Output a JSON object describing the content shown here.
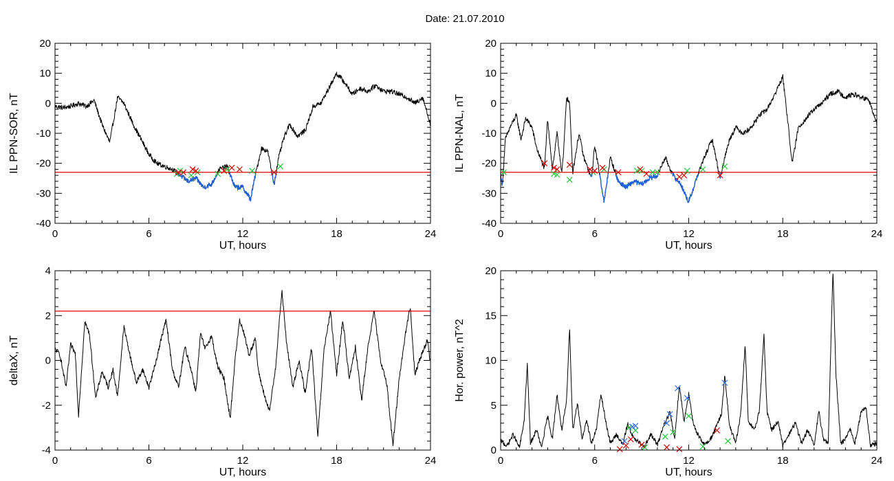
{
  "page_title": "Date:  21.07.2010",
  "colors": {
    "axis": "#000000",
    "trace": "#000000",
    "below": "#1f5fd6",
    "threshold": "#e00000",
    "marker_red": "#e00000",
    "marker_green": "#22c83a",
    "marker_blue": "#2f6fe8"
  },
  "chart_data": [
    {
      "id": "sor",
      "type": "line",
      "xlabel": "UT, hours",
      "ylabel": "IL PPN-SOR, nT",
      "xlim": [
        0,
        24
      ],
      "ylim": [
        -40,
        20
      ],
      "xticks": [
        0,
        6,
        12,
        18,
        24
      ],
      "yticks": [
        -40,
        -30,
        -20,
        -10,
        0,
        10,
        20
      ],
      "threshold": -23,
      "anchors": [
        [
          0,
          -1
        ],
        [
          0.5,
          -1.5
        ],
        [
          1,
          -1
        ],
        [
          1.5,
          0
        ],
        [
          2,
          -1
        ],
        [
          2.5,
          1
        ],
        [
          3,
          -7
        ],
        [
          3.5,
          -13
        ],
        [
          4,
          2
        ],
        [
          4.4,
          0
        ],
        [
          5,
          -7
        ],
        [
          5.5,
          -12
        ],
        [
          6,
          -17
        ],
        [
          6.5,
          -20
        ],
        [
          7,
          -21
        ],
        [
          7.5,
          -22
        ],
        [
          8,
          -24
        ],
        [
          8.5,
          -26
        ],
        [
          9,
          -25
        ],
        [
          9.5,
          -28
        ],
        [
          10,
          -27
        ],
        [
          10.5,
          -22
        ],
        [
          11,
          -21
        ],
        [
          11.5,
          -28
        ],
        [
          12,
          -28
        ],
        [
          12.5,
          -32
        ],
        [
          12.8,
          -24
        ],
        [
          13.2,
          -15
        ],
        [
          13.6,
          -16
        ],
        [
          14,
          -27
        ],
        [
          14.3,
          -18
        ],
        [
          14.6,
          -12
        ],
        [
          15,
          -7
        ],
        [
          15.5,
          -11
        ],
        [
          16,
          -9
        ],
        [
          16.5,
          -1
        ],
        [
          17,
          0
        ],
        [
          17.5,
          5
        ],
        [
          18,
          10
        ],
        [
          18.5,
          7
        ],
        [
          19,
          3
        ],
        [
          19.5,
          5
        ],
        [
          20,
          4
        ],
        [
          20.5,
          6
        ],
        [
          21,
          4
        ],
        [
          21.5,
          4
        ],
        [
          22,
          3
        ],
        [
          22.5,
          2
        ],
        [
          23,
          0
        ],
        [
          23.5,
          2
        ],
        [
          24,
          -7
        ]
      ],
      "markers_red": [
        [
          7.9,
          -23
        ],
        [
          8.2,
          -23
        ],
        [
          8.8,
          -22
        ],
        [
          9.0,
          -22.5
        ],
        [
          10.8,
          -22.5
        ],
        [
          11.3,
          -21.5
        ],
        [
          11.8,
          -22
        ],
        [
          14.0,
          -23
        ]
      ],
      "markers_green": [
        [
          7.8,
          -23.5
        ],
        [
          8.0,
          -22.5
        ],
        [
          8.7,
          -24
        ],
        [
          9.1,
          -23
        ],
        [
          10.4,
          -23.5
        ],
        [
          11.0,
          -22
        ],
        [
          12.6,
          -22.5
        ],
        [
          14.4,
          -21
        ]
      ],
      "markers_blue": []
    },
    {
      "id": "nal",
      "type": "line",
      "xlabel": "UT, hours",
      "ylabel": "IL PPN-NAL, nT",
      "xlim": [
        0,
        24
      ],
      "ylim": [
        -40,
        20
      ],
      "xticks": [
        0,
        6,
        12,
        18,
        24
      ],
      "yticks": [
        -40,
        -30,
        -20,
        -10,
        0,
        10,
        20
      ],
      "threshold": -23,
      "anchors": [
        [
          0,
          -23
        ],
        [
          0.1,
          -28
        ],
        [
          0.3,
          -12
        ],
        [
          0.6,
          -8
        ],
        [
          1,
          -4
        ],
        [
          1.3,
          -12
        ],
        [
          1.6,
          -5
        ],
        [
          2,
          -8
        ],
        [
          2.3,
          -15
        ],
        [
          2.8,
          -22
        ],
        [
          3.0,
          -5
        ],
        [
          3.3,
          -22
        ],
        [
          3.6,
          -10
        ],
        [
          3.9,
          -23
        ],
        [
          4,
          -18
        ],
        [
          4.2,
          2
        ],
        [
          4.4,
          0
        ],
        [
          4.6,
          -23
        ],
        [
          5,
          -10
        ],
        [
          5.3,
          -18
        ],
        [
          5.8,
          -25
        ],
        [
          6.0,
          -14
        ],
        [
          6.3,
          -23
        ],
        [
          6.6,
          -33
        ],
        [
          7,
          -18
        ],
        [
          7.5,
          -26
        ],
        [
          8,
          -28
        ],
        [
          8.5,
          -26
        ],
        [
          9,
          -27
        ],
        [
          9.5,
          -25
        ],
        [
          10,
          -24
        ],
        [
          10.5,
          -18
        ],
        [
          11,
          -24
        ],
        [
          11.5,
          -27
        ],
        [
          12,
          -33
        ],
        [
          12.5,
          -25
        ],
        [
          13,
          -18
        ],
        [
          13.5,
          -12
        ],
        [
          14,
          -25
        ],
        [
          14.3,
          -18
        ],
        [
          14.6,
          -12
        ],
        [
          15,
          -8
        ],
        [
          15.5,
          -10
        ],
        [
          16,
          -8
        ],
        [
          16.5,
          -4
        ],
        [
          17,
          -2
        ],
        [
          17.5,
          3
        ],
        [
          18,
          9
        ],
        [
          18.3,
          -5
        ],
        [
          18.6,
          -20
        ],
        [
          19,
          -8
        ],
        [
          19.5,
          -5
        ],
        [
          20,
          -2
        ],
        [
          20.5,
          0
        ],
        [
          21,
          3
        ],
        [
          21.5,
          4
        ],
        [
          22,
          2
        ],
        [
          22.5,
          3
        ],
        [
          23,
          2
        ],
        [
          23.5,
          1
        ],
        [
          24,
          -7
        ]
      ],
      "markers_red": [
        [
          2.8,
          -20
        ],
        [
          3.4,
          -21.5
        ],
        [
          3.6,
          -22
        ],
        [
          4.4,
          -20.5
        ],
        [
          5.7,
          -22
        ],
        [
          6.0,
          -22.5
        ],
        [
          6.5,
          -21.5
        ],
        [
          7.5,
          -23
        ],
        [
          8.9,
          -22
        ],
        [
          9.3,
          -23.5
        ],
        [
          11.4,
          -24.5
        ],
        [
          11.7,
          -24
        ],
        [
          14.0,
          -24
        ]
      ],
      "markers_green": [
        [
          0.2,
          -23
        ],
        [
          3.4,
          -23.5
        ],
        [
          3.6,
          -23.8
        ],
        [
          4.4,
          -25.5
        ],
        [
          5.9,
          -23
        ],
        [
          6.6,
          -22
        ],
        [
          8.7,
          -22.5
        ],
        [
          9.0,
          -22.5
        ],
        [
          9.7,
          -23
        ],
        [
          10.0,
          -23
        ],
        [
          11.9,
          -22.5
        ],
        [
          12.9,
          -22
        ],
        [
          14.3,
          -21
        ]
      ],
      "markers_blue": []
    },
    {
      "id": "deltax",
      "type": "line",
      "xlabel": "UT, hours",
      "ylabel": "deltaX, nT",
      "xlim": [
        0,
        24
      ],
      "ylim": [
        -4,
        4
      ],
      "xticks": [
        0,
        6,
        12,
        18,
        24
      ],
      "yticks": [
        -4,
        -2,
        0,
        2,
        4
      ],
      "threshold": 2.2,
      "anchors": [
        [
          0,
          0.5
        ],
        [
          0.3,
          0.3
        ],
        [
          0.7,
          -1.2
        ],
        [
          1,
          0.7
        ],
        [
          1.3,
          0.3
        ],
        [
          1.5,
          -2.5
        ],
        [
          1.9,
          1.7
        ],
        [
          2.2,
          1.2
        ],
        [
          2.6,
          -1.7
        ],
        [
          3,
          -0.5
        ],
        [
          3.4,
          -1.2
        ],
        [
          3.7,
          -0.4
        ],
        [
          4,
          -1.6
        ],
        [
          4.4,
          1.5
        ],
        [
          4.8,
          0.2
        ],
        [
          5.2,
          -1
        ],
        [
          5.6,
          -0.4
        ],
        [
          6,
          -1.2
        ],
        [
          6.4,
          -0.2
        ],
        [
          6.8,
          1
        ],
        [
          7.1,
          1.8
        ],
        [
          7.5,
          -0.4
        ],
        [
          7.9,
          -1.2
        ],
        [
          8.3,
          0.6
        ],
        [
          8.7,
          -0.4
        ],
        [
          9,
          -1.4
        ],
        [
          9.3,
          1.2
        ],
        [
          9.6,
          0.5
        ],
        [
          10,
          1.1
        ],
        [
          10.4,
          -0.3
        ],
        [
          10.8,
          -0.8
        ],
        [
          11.2,
          -2.6
        ],
        [
          11.5,
          0
        ],
        [
          11.8,
          1.8
        ],
        [
          12.1,
          1.2
        ],
        [
          12.4,
          0.2
        ],
        [
          12.8,
          1
        ],
        [
          13,
          -0.5
        ],
        [
          13.4,
          -1.6
        ],
        [
          13.7,
          -2.3
        ],
        [
          14.1,
          -0.3
        ],
        [
          14.5,
          3.1
        ],
        [
          14.8,
          0.8
        ],
        [
          15.2,
          -1.2
        ],
        [
          15.6,
          0
        ],
        [
          16,
          -1.5
        ],
        [
          16.4,
          0.6
        ],
        [
          16.8,
          -3.4
        ],
        [
          17.2,
          0.5
        ],
        [
          17.6,
          2.2
        ],
        [
          18,
          -0.6
        ],
        [
          18.4,
          1.8
        ],
        [
          18.8,
          -0.8
        ],
        [
          19.2,
          0.6
        ],
        [
          19.6,
          -1.8
        ],
        [
          20,
          0.6
        ],
        [
          20.4,
          2.2
        ],
        [
          20.8,
          0
        ],
        [
          21.2,
          -1
        ],
        [
          21.6,
          -3.8
        ],
        [
          22,
          -0.8
        ],
        [
          22.4,
          1.2
        ],
        [
          22.7,
          2.4
        ],
        [
          23,
          -0.6
        ],
        [
          23.4,
          0.2
        ],
        [
          23.8,
          0.9
        ],
        [
          24,
          -0.1
        ]
      ],
      "markers_red": [],
      "markers_green": [],
      "markers_blue": []
    },
    {
      "id": "power",
      "type": "line",
      "xlabel": "UT, hours",
      "ylabel": "Hor. power, nT^2",
      "xlim": [
        0,
        24
      ],
      "ylim": [
        0,
        20
      ],
      "xticks": [
        0,
        6,
        12,
        18,
        24
      ],
      "yticks": [
        0,
        5,
        10,
        15,
        20
      ],
      "threshold": null,
      "anchors": [
        [
          0,
          0.8
        ],
        [
          0.4,
          0.2
        ],
        [
          0.8,
          1.5
        ],
        [
          1.2,
          0
        ],
        [
          1.5,
          3
        ],
        [
          1.7,
          9.3
        ],
        [
          1.9,
          0.5
        ],
        [
          2.3,
          2
        ],
        [
          2.6,
          0
        ],
        [
          3,
          3.5
        ],
        [
          3.3,
          1
        ],
        [
          3.6,
          6
        ],
        [
          3.9,
          2
        ],
        [
          4.2,
          5
        ],
        [
          4.4,
          13.6
        ],
        [
          4.6,
          2
        ],
        [
          4.9,
          5
        ],
        [
          5.2,
          1
        ],
        [
          5.5,
          3
        ],
        [
          5.8,
          0.5
        ],
        [
          6.1,
          2
        ],
        [
          6.4,
          6
        ],
        [
          6.7,
          3
        ],
        [
          7,
          0.5
        ],
        [
          7.4,
          1.5
        ],
        [
          7.8,
          0.3
        ],
        [
          8.1,
          2.7
        ],
        [
          8.5,
          1
        ],
        [
          8.9,
          0.5
        ],
        [
          9.2,
          0.2
        ],
        [
          9.6,
          1.5
        ],
        [
          10,
          0.3
        ],
        [
          10.4,
          2.5
        ],
        [
          10.8,
          4
        ],
        [
          11.1,
          1
        ],
        [
          11.4,
          7
        ],
        [
          11.7,
          3
        ],
        [
          12,
          6
        ],
        [
          12.3,
          2.5
        ],
        [
          12.6,
          1.5
        ],
        [
          13,
          0.3
        ],
        [
          13.4,
          1
        ],
        [
          13.8,
          2.5
        ],
        [
          14.1,
          3.8
        ],
        [
          14.3,
          8
        ],
        [
          14.6,
          2.5
        ],
        [
          15,
          0.5
        ],
        [
          15.3,
          3.5
        ],
        [
          15.6,
          11.5
        ],
        [
          15.8,
          3
        ],
        [
          16.2,
          2
        ],
        [
          16.5,
          4
        ],
        [
          16.8,
          12.5
        ],
        [
          17,
          4
        ],
        [
          17.3,
          2
        ],
        [
          17.7,
          3
        ],
        [
          18,
          0.2
        ],
        [
          18.4,
          1.5
        ],
        [
          18.8,
          2.8
        ],
        [
          19.2,
          0.5
        ],
        [
          19.6,
          2
        ],
        [
          20,
          0.2
        ],
        [
          20.3,
          4
        ],
        [
          20.6,
          1
        ],
        [
          20.9,
          0.5
        ],
        [
          21.2,
          20
        ],
        [
          21.4,
          8
        ],
        [
          21.7,
          0.5
        ],
        [
          22,
          1
        ],
        [
          22.3,
          2.2
        ],
        [
          22.6,
          0.5
        ],
        [
          23,
          4
        ],
        [
          23.3,
          4.5
        ],
        [
          23.6,
          0.2
        ],
        [
          24,
          0.5
        ]
      ],
      "markers_red": [
        [
          7.6,
          0.1
        ],
        [
          8.0,
          0.5
        ],
        [
          8.3,
          1.2
        ],
        [
          9.0,
          0.6
        ],
        [
          10.6,
          0.3
        ],
        [
          11.4,
          0.1
        ],
        [
          13.8,
          2.2
        ]
      ],
      "markers_green": [
        [
          8.2,
          2.5
        ],
        [
          8.6,
          2.2
        ],
        [
          9.2,
          0.3
        ],
        [
          10.5,
          1.5
        ],
        [
          11.0,
          2.0
        ],
        [
          12.0,
          3.8
        ],
        [
          12.9,
          0.4
        ],
        [
          14.5,
          1.0
        ]
      ],
      "markers_blue": [
        [
          7.9,
          1.0
        ],
        [
          8.4,
          2.6
        ],
        [
          8.6,
          2.7
        ],
        [
          10.6,
          3.0
        ],
        [
          10.8,
          4.0
        ],
        [
          11.3,
          6.9
        ],
        [
          11.9,
          5.8
        ],
        [
          14.3,
          7.5
        ]
      ]
    }
  ]
}
